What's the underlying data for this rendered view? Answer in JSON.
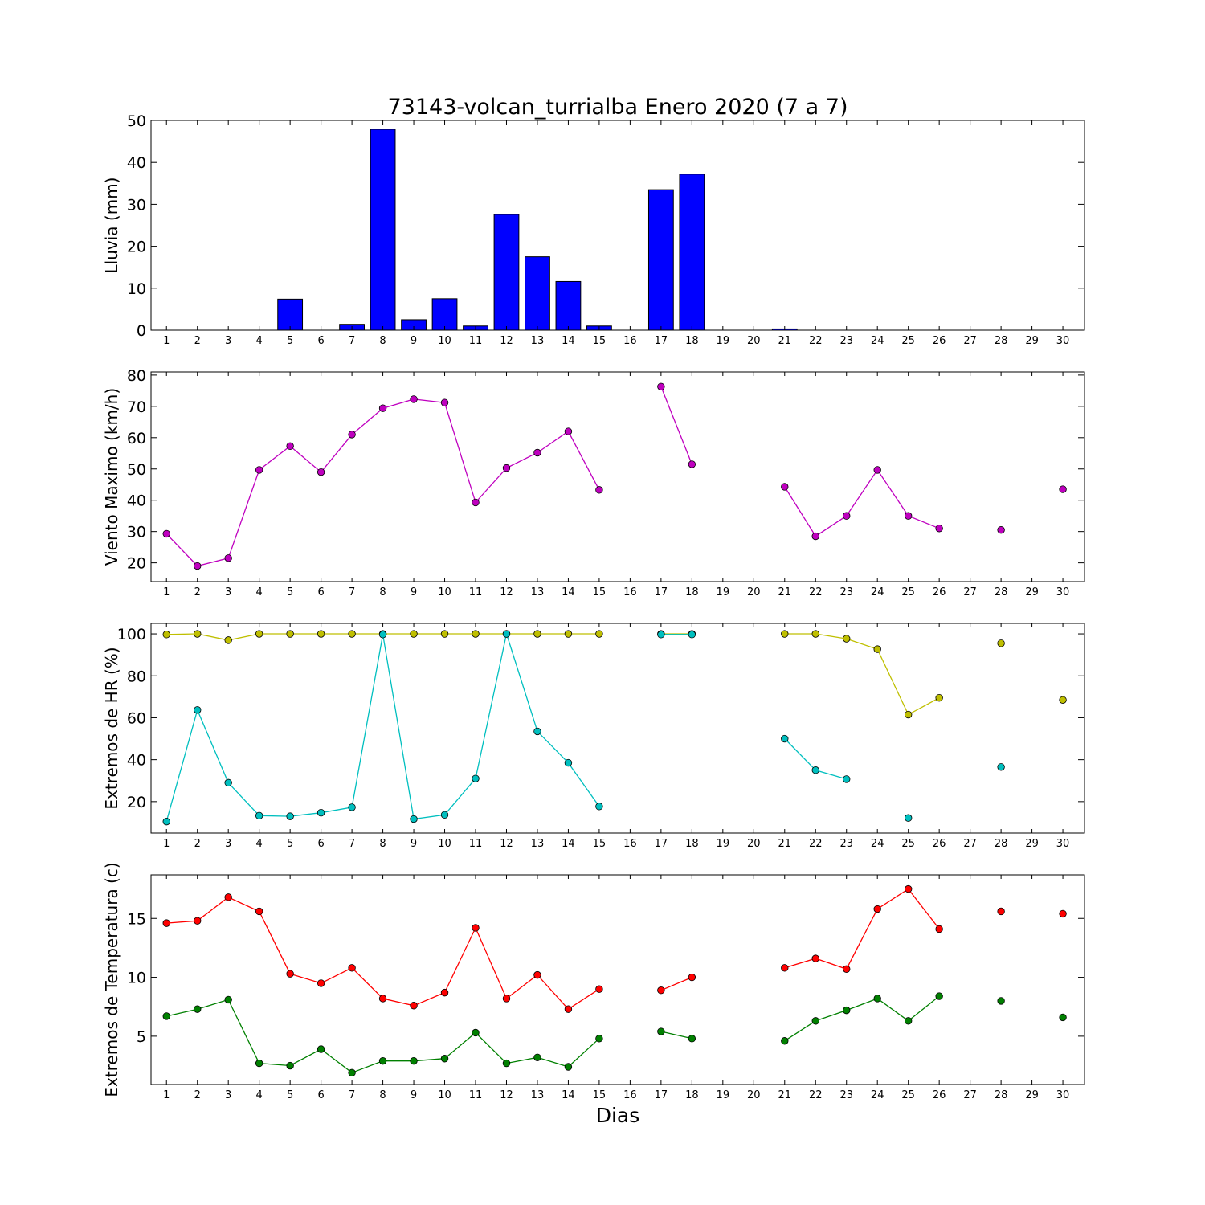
{
  "title": "73143-volcan_turrialba Enero 2020  (7 a 7)",
  "xlabel": "Dias",
  "xticks": [
    "1",
    "2",
    "3",
    "4",
    "5",
    "6",
    "7",
    "8",
    "9",
    "10",
    "11",
    "12",
    "13",
    "14",
    "15",
    "16",
    "17",
    "18",
    "19",
    "20",
    "21",
    "22",
    "23",
    "24",
    "25",
    "26",
    "27",
    "28",
    "29",
    "30"
  ],
  "chart_data": [
    {
      "type": "bar",
      "ylabel": "Lluvia (mm)",
      "ylim": [
        0,
        50
      ],
      "yticks": [
        0,
        10,
        20,
        30,
        40,
        50
      ],
      "grid": false,
      "x": [
        1,
        2,
        3,
        4,
        5,
        6,
        7,
        8,
        9,
        10,
        11,
        12,
        13,
        14,
        15,
        16,
        17,
        18,
        19,
        20,
        21,
        22,
        23,
        24,
        25,
        26,
        27,
        28,
        29,
        30
      ],
      "series": [
        {
          "color": "#0000ff",
          "values": [
            0,
            0,
            0,
            0,
            7.4,
            0,
            1.4,
            47.9,
            2.5,
            7.5,
            1.0,
            27.6,
            17.5,
            11.6,
            1.0,
            0,
            33.5,
            37.2,
            0,
            0,
            0.3,
            0,
            0,
            0,
            0,
            0,
            0,
            0,
            0,
            0
          ]
        }
      ]
    },
    {
      "type": "line",
      "ylabel": "Viento Maximo (km/h)",
      "ylim": [
        14,
        81
      ],
      "yticks": [
        20,
        30,
        40,
        50,
        60,
        70,
        80
      ],
      "grid": false,
      "x": [
        1,
        2,
        3,
        4,
        5,
        6,
        7,
        8,
        9,
        10,
        11,
        12,
        13,
        14,
        15,
        16,
        17,
        18,
        19,
        20,
        21,
        22,
        23,
        24,
        25,
        26,
        27,
        28,
        29,
        30
      ],
      "series": [
        {
          "color": "#bf00bf",
          "values": [
            29.3,
            19.0,
            21.5,
            49.7,
            57.3,
            49.0,
            61.0,
            69.4,
            72.3,
            71.2,
            39.3,
            50.3,
            55.2,
            62.0,
            43.3,
            null,
            76.3,
            51.5,
            null,
            null,
            44.3,
            28.5,
            35.0,
            49.7,
            35.0,
            31.0,
            null,
            30.5,
            null,
            43.5
          ]
        }
      ]
    },
    {
      "type": "line",
      "ylabel": "Extremos de HR (%)",
      "ylim": [
        5,
        105
      ],
      "yticks": [
        20,
        40,
        60,
        80,
        100
      ],
      "grid": false,
      "x": [
        1,
        2,
        3,
        4,
        5,
        6,
        7,
        8,
        9,
        10,
        11,
        12,
        13,
        14,
        15,
        16,
        17,
        18,
        19,
        20,
        21,
        22,
        23,
        24,
        25,
        26,
        27,
        28,
        29,
        30
      ],
      "series": [
        {
          "color": "#bfbf00",
          "values": [
            99.7,
            100,
            97,
            100,
            100,
            100,
            100,
            100,
            100,
            100,
            100,
            100,
            100,
            100,
            100,
            null,
            100,
            100,
            null,
            null,
            100,
            100,
            97.7,
            92.7,
            61.5,
            69.5,
            null,
            95.5,
            null,
            68.5
          ]
        },
        {
          "color": "#00bfbf",
          "values": [
            10.5,
            63.7,
            29,
            13.3,
            13,
            14.7,
            17.3,
            99.7,
            11.7,
            13.7,
            31,
            100,
            53.5,
            38.5,
            17.7,
            null,
            99.7,
            99.7,
            null,
            null,
            50,
            35,
            30.7,
            null,
            12.2,
            null,
            null,
            36.5,
            null,
            null
          ]
        }
      ]
    },
    {
      "type": "line",
      "ylabel": "Extremos de Temperatura (c)",
      "ylim": [
        0.9,
        18.7
      ],
      "yticks": [
        5,
        10,
        15
      ],
      "grid": false,
      "x": [
        1,
        2,
        3,
        4,
        5,
        6,
        7,
        8,
        9,
        10,
        11,
        12,
        13,
        14,
        15,
        16,
        17,
        18,
        19,
        20,
        21,
        22,
        23,
        24,
        25,
        26,
        27,
        28,
        29,
        30
      ],
      "series": [
        {
          "color": "#ff0000",
          "values": [
            14.6,
            14.8,
            16.8,
            15.6,
            10.3,
            9.5,
            10.8,
            8.2,
            7.6,
            8.7,
            14.2,
            8.2,
            10.2,
            7.3,
            9.0,
            null,
            8.9,
            10.0,
            null,
            null,
            10.8,
            11.6,
            10.7,
            15.8,
            17.5,
            14.1,
            null,
            15.6,
            null,
            15.4
          ]
        },
        {
          "color": "#008000",
          "values": [
            6.7,
            7.3,
            8.1,
            2.7,
            2.5,
            3.9,
            1.9,
            2.9,
            2.9,
            3.1,
            5.3,
            2.7,
            3.2,
            2.4,
            4.8,
            null,
            5.4,
            4.8,
            null,
            null,
            4.6,
            6.3,
            7.2,
            8.2,
            6.3,
            8.4,
            null,
            8.0,
            null,
            6.6
          ]
        }
      ]
    }
  ]
}
